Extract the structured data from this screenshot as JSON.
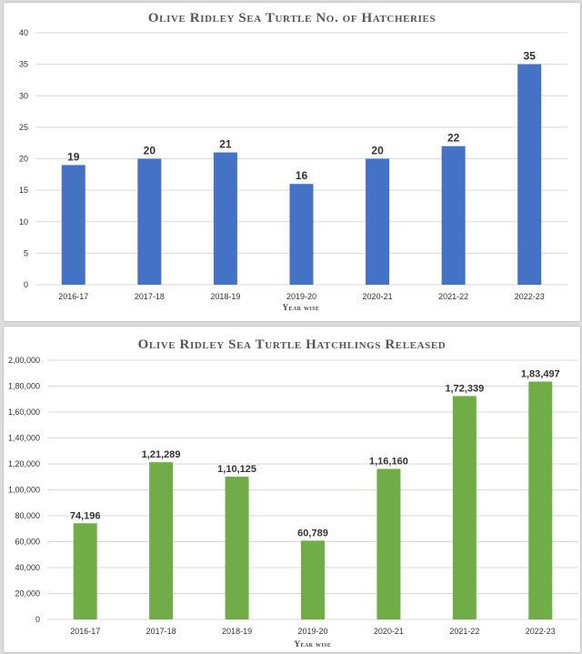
{
  "chart_data": [
    {
      "type": "bar",
      "title": "Olive Ridley Sea Turtle No. of Hatcheries",
      "xlabel": "Year wise",
      "ylabel": "",
      "categories": [
        "2016-17",
        "2017-18",
        "2018-19",
        "2019-20",
        "2020-21",
        "2021-22",
        "2022-23"
      ],
      "values": [
        19,
        20,
        21,
        16,
        20,
        22,
        35
      ],
      "data_labels": [
        "19",
        "20",
        "21",
        "16",
        "20",
        "22",
        "35"
      ],
      "ylim": [
        0,
        40
      ],
      "yticks": [
        0,
        5,
        10,
        15,
        20,
        25,
        30,
        35,
        40
      ],
      "ytick_labels": [
        "0",
        "5",
        "10",
        "15",
        "20",
        "25",
        "30",
        "35",
        "40"
      ],
      "grid": true,
      "color": "#4472c4"
    },
    {
      "type": "bar",
      "title": "Olive Ridley Sea Turtle Hatchlings Released",
      "xlabel": "Year wise",
      "ylabel": "",
      "categories": [
        "2016-17",
        "2017-18",
        "2018-19",
        "2019-20",
        "2020-21",
        "2021-22",
        "2022-23"
      ],
      "values": [
        74196,
        121289,
        110125,
        60789,
        116160,
        172339,
        183497
      ],
      "data_labels": [
        "74,196",
        "1,21,289",
        "1,10,125",
        "60,789",
        "1,16,160",
        "1,72,339",
        "1,83,497"
      ],
      "ylim": [
        0,
        200000
      ],
      "yticks": [
        0,
        20000,
        40000,
        60000,
        80000,
        100000,
        120000,
        140000,
        160000,
        180000,
        200000
      ],
      "ytick_labels": [
        "0",
        "20,000",
        "40,000",
        "60,000",
        "80,000",
        "1,00,000",
        "1,20,000",
        "1,40,000",
        "1,60,000",
        "1,80,000",
        "2,00,000"
      ],
      "grid": true,
      "color": "#70ad47"
    }
  ]
}
